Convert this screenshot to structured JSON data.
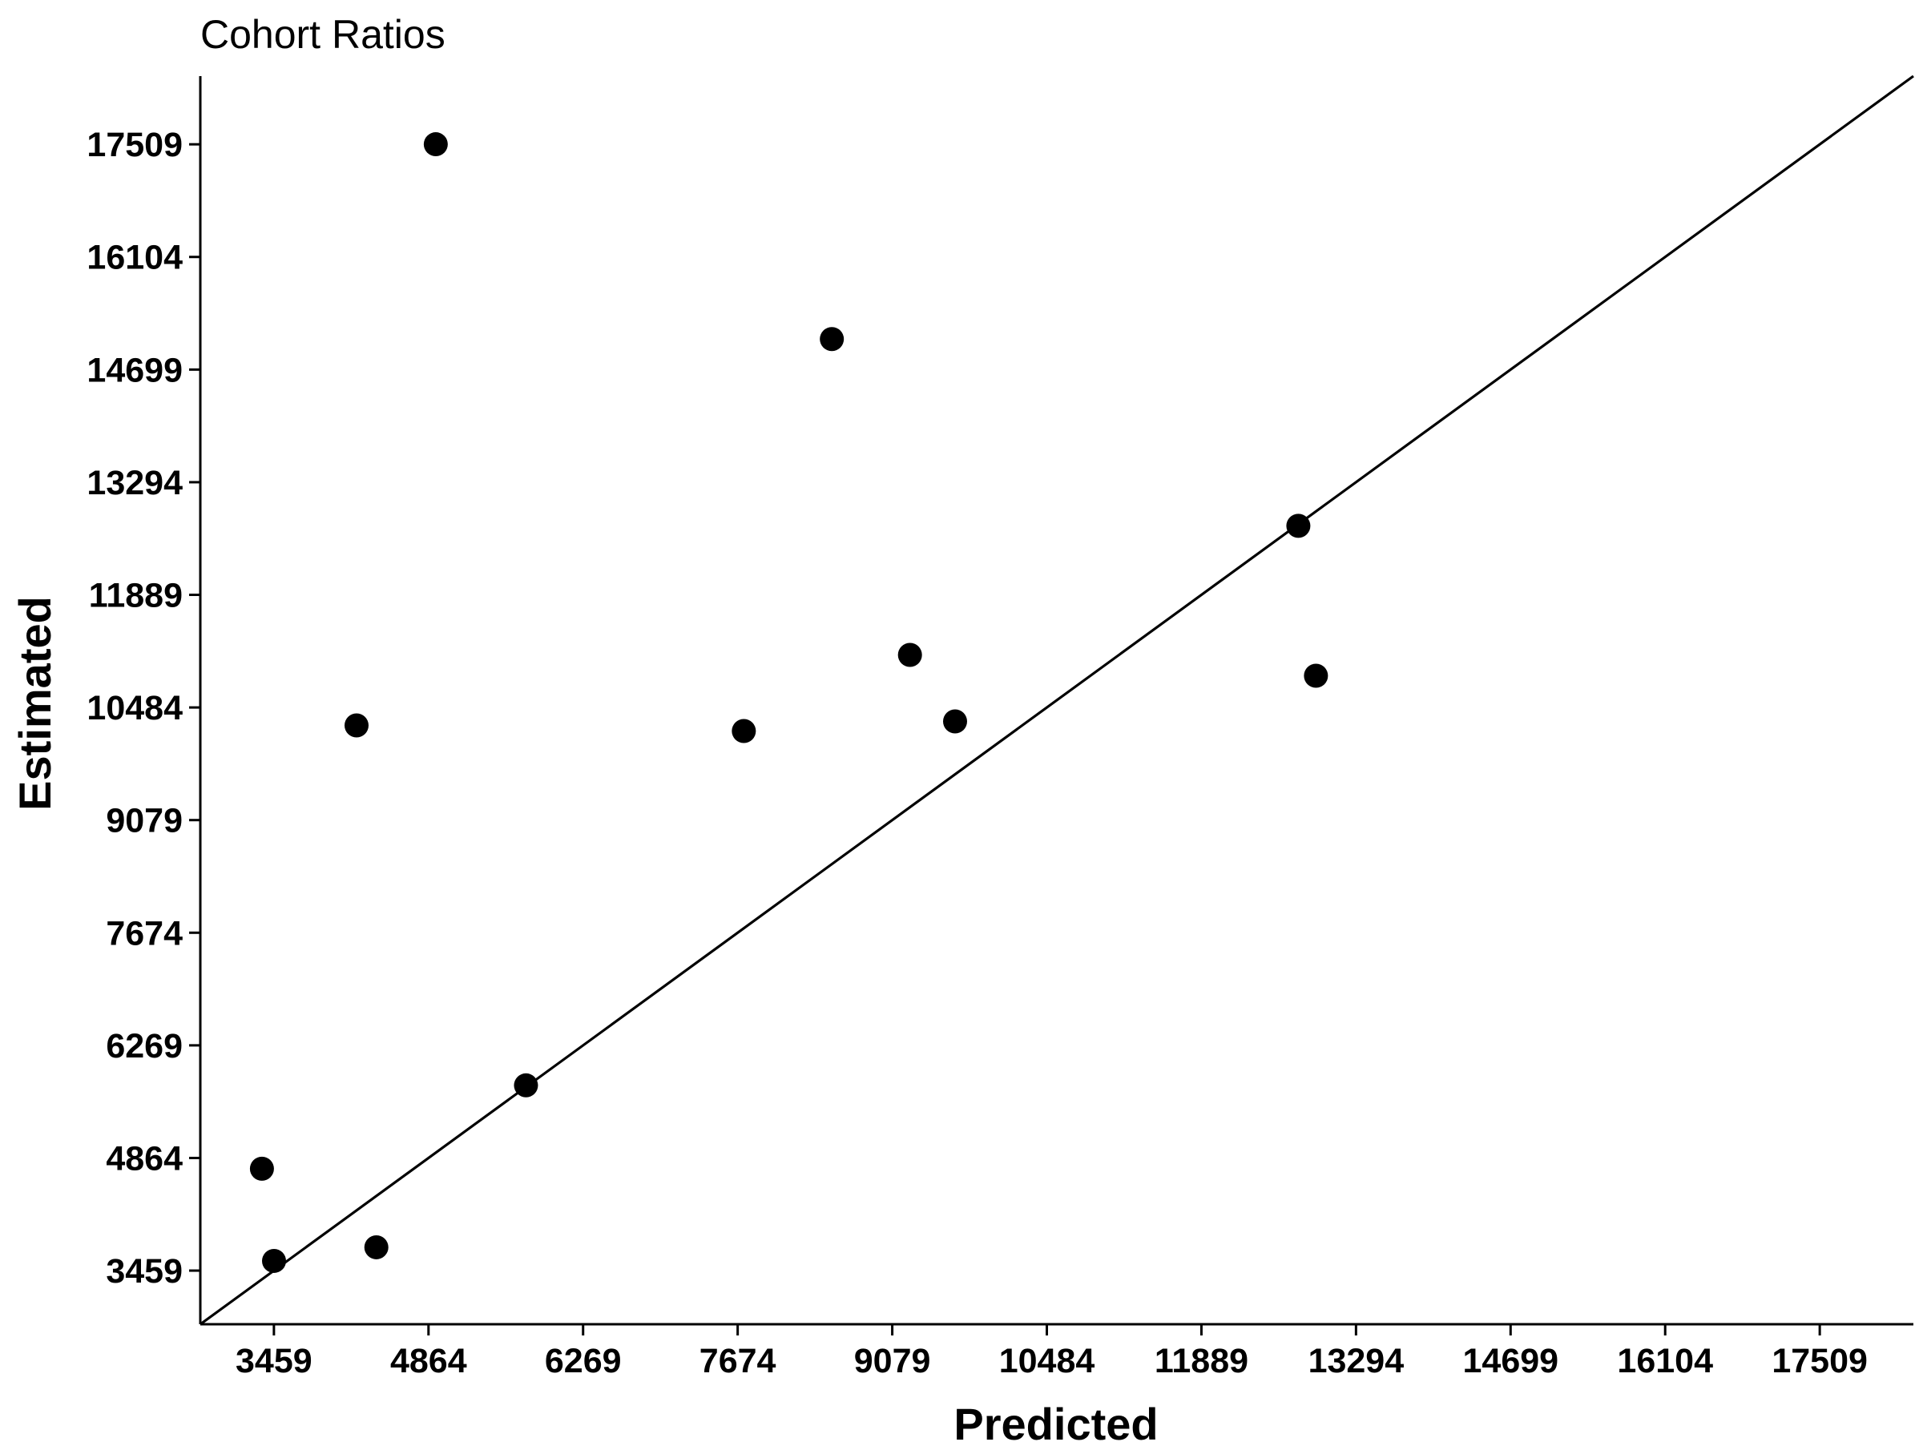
{
  "chart_data": {
    "type": "scatter",
    "title": "Cohort Ratios",
    "xlabel": "Predicted",
    "ylabel": "Estimated",
    "xlim": [
      2790,
      18360
    ],
    "ylim": [
      2790,
      18360
    ],
    "x_ticks": [
      3459,
      4864,
      6269,
      7674,
      9079,
      10484,
      11889,
      13294,
      14699,
      16104,
      17509
    ],
    "y_ticks": [
      3459,
      4864,
      6269,
      7674,
      9079,
      10484,
      11889,
      13294,
      14699,
      16104,
      17509
    ],
    "grid": false,
    "reference_line": {
      "type": "identity",
      "slope": 1,
      "intercept": 0
    },
    "points": [
      {
        "x": 3350,
        "y": 4730
      },
      {
        "x": 3460,
        "y": 3580
      },
      {
        "x": 4390,
        "y": 3750
      },
      {
        "x": 4210,
        "y": 10260
      },
      {
        "x": 4930,
        "y": 17510
      },
      {
        "x": 5750,
        "y": 5770
      },
      {
        "x": 7730,
        "y": 10190
      },
      {
        "x": 8530,
        "y": 15080
      },
      {
        "x": 9240,
        "y": 11140
      },
      {
        "x": 9650,
        "y": 10310
      },
      {
        "x": 12770,
        "y": 12750
      },
      {
        "x": 12930,
        "y": 10880
      }
    ],
    "colors": {
      "points": "#000000",
      "line": "#000000",
      "axis": "#000000"
    }
  }
}
